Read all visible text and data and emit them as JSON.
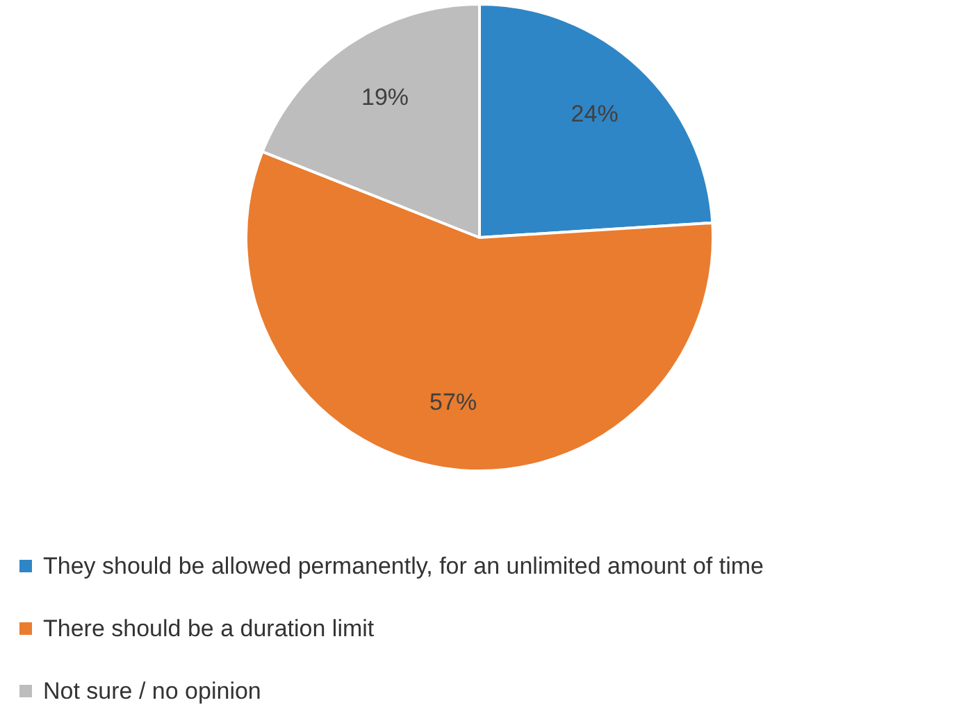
{
  "chart_data": {
    "type": "pie",
    "categories": [
      "They should be allowed permanently, for an unlimited amount of time",
      "There should be a duration limit",
      "Not sure / no opinion"
    ],
    "values": [
      24,
      57,
      19
    ],
    "colors": [
      "#2f86c6",
      "#e97c2e",
      "#bdbdbd"
    ],
    "value_labels": [
      "24%",
      "57%",
      "19%"
    ],
    "legend": "bottom left"
  }
}
